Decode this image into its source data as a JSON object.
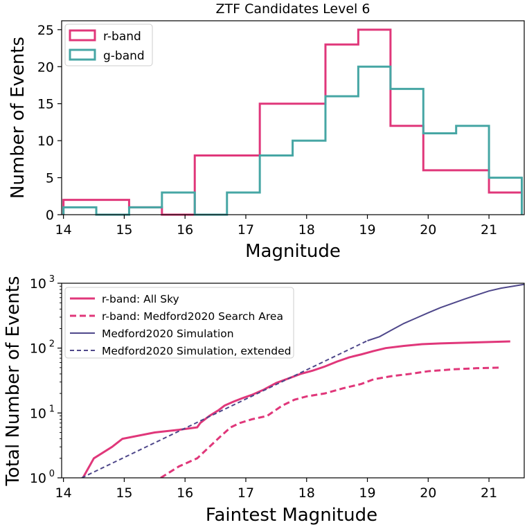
{
  "chart_data": [
    {
      "type": "histogram",
      "title": "ZTF Candidates Level 6",
      "xlabel": "Magnitude",
      "ylabel": "Number of Events",
      "xlim": [
        13.97,
        21.58
      ],
      "ylim": [
        0,
        26.2
      ],
      "xticks": [
        14,
        15,
        16,
        17,
        18,
        19,
        20,
        21
      ],
      "yticks": [
        0,
        5,
        10,
        15,
        20,
        25
      ],
      "legend_position": "upper-left",
      "series": [
        {
          "name": "r-band",
          "color": "#e0377a",
          "edges": [
            14.0,
            15.08,
            15.62,
            16.16,
            16.69,
            17.23,
            17.77,
            18.31,
            18.85,
            19.38,
            19.92,
            20.46,
            21.0,
            21.54
          ],
          "values": [
            2,
            1,
            0,
            8,
            8,
            15,
            15,
            23,
            25,
            12,
            6,
            6,
            3
          ]
        },
        {
          "name": "g-band",
          "color": "#46a6a4",
          "edges": [
            14.0,
            14.54,
            15.08,
            15.62,
            16.16,
            16.69,
            17.23,
            17.77,
            18.31,
            18.85,
            19.38,
            19.92,
            20.46,
            21.0,
            21.54
          ],
          "values": [
            1,
            0,
            1,
            3,
            0,
            3,
            8,
            10,
            16,
            20,
            17,
            11,
            12,
            5
          ]
        }
      ]
    },
    {
      "type": "line",
      "xlabel": "Faintest Magnitude",
      "ylabel": "Total Number of Events",
      "xlim": [
        13.97,
        21.58
      ],
      "ylim": [
        1,
        1000
      ],
      "yscale": "log",
      "xticks": [
        14,
        15,
        16,
        17,
        18,
        19,
        20,
        21
      ],
      "yticks": [
        1,
        10,
        100,
        1000
      ],
      "yticklabels": [
        "10",
        "10",
        "10",
        "10"
      ],
      "yticklabel_exponents": [
        "0",
        "1",
        "2",
        "3"
      ],
      "legend_position": "upper-left",
      "series": [
        {
          "name": "r-band: All Sky",
          "color": "#e0377a",
          "dash": "solid",
          "x": [
            14.32,
            14.5,
            14.8,
            14.97,
            15.5,
            15.9,
            16.2,
            16.25,
            16.4,
            16.55,
            16.65,
            16.8,
            16.95,
            17.1,
            17.3,
            17.5,
            17.7,
            17.9,
            18.1,
            18.3,
            18.5,
            18.7,
            18.9,
            19.1,
            19.3,
            19.6,
            19.9,
            20.2,
            20.6,
            21.0,
            21.35
          ],
          "y": [
            1,
            2,
            3,
            4,
            5,
            5.5,
            6,
            7,
            9,
            11,
            13,
            15,
            17,
            19,
            23,
            29,
            34,
            40,
            45,
            52,
            62,
            72,
            80,
            90,
            100,
            108,
            115,
            118,
            121,
            124,
            127
          ]
        },
        {
          "name": "r-band: Medford2020 Search Area",
          "color": "#e0377a",
          "dash": "dashed",
          "x": [
            15.6,
            15.9,
            16.2,
            16.4,
            16.6,
            16.75,
            16.9,
            17.1,
            17.35,
            17.6,
            17.8,
            18.0,
            18.3,
            18.6,
            18.9,
            19.1,
            19.4,
            19.7,
            20.0,
            20.4,
            20.8,
            21.17
          ],
          "y": [
            1,
            1.5,
            2,
            3,
            4.5,
            6,
            7,
            8,
            9,
            13,
            16,
            18,
            20,
            24,
            28,
            33,
            37,
            40,
            44,
            47,
            49,
            50
          ]
        },
        {
          "name": "Medford2020 Simulation",
          "color": "#4e478a",
          "dash": "solid",
          "x": [
            19.0,
            19.2,
            19.4,
            19.6,
            19.8,
            20.0,
            20.2,
            20.4,
            20.6,
            20.8,
            21.0,
            21.2,
            21.4,
            21.58
          ],
          "y": [
            130,
            150,
            190,
            240,
            290,
            350,
            420,
            490,
            570,
            660,
            760,
            840,
            900,
            960
          ]
        },
        {
          "name": "Medford2020 Simulation, extended",
          "color": "#4e478a",
          "dash": "dashed",
          "x": [
            14.3,
            19.0
          ],
          "y": [
            1,
            130
          ]
        }
      ]
    }
  ]
}
